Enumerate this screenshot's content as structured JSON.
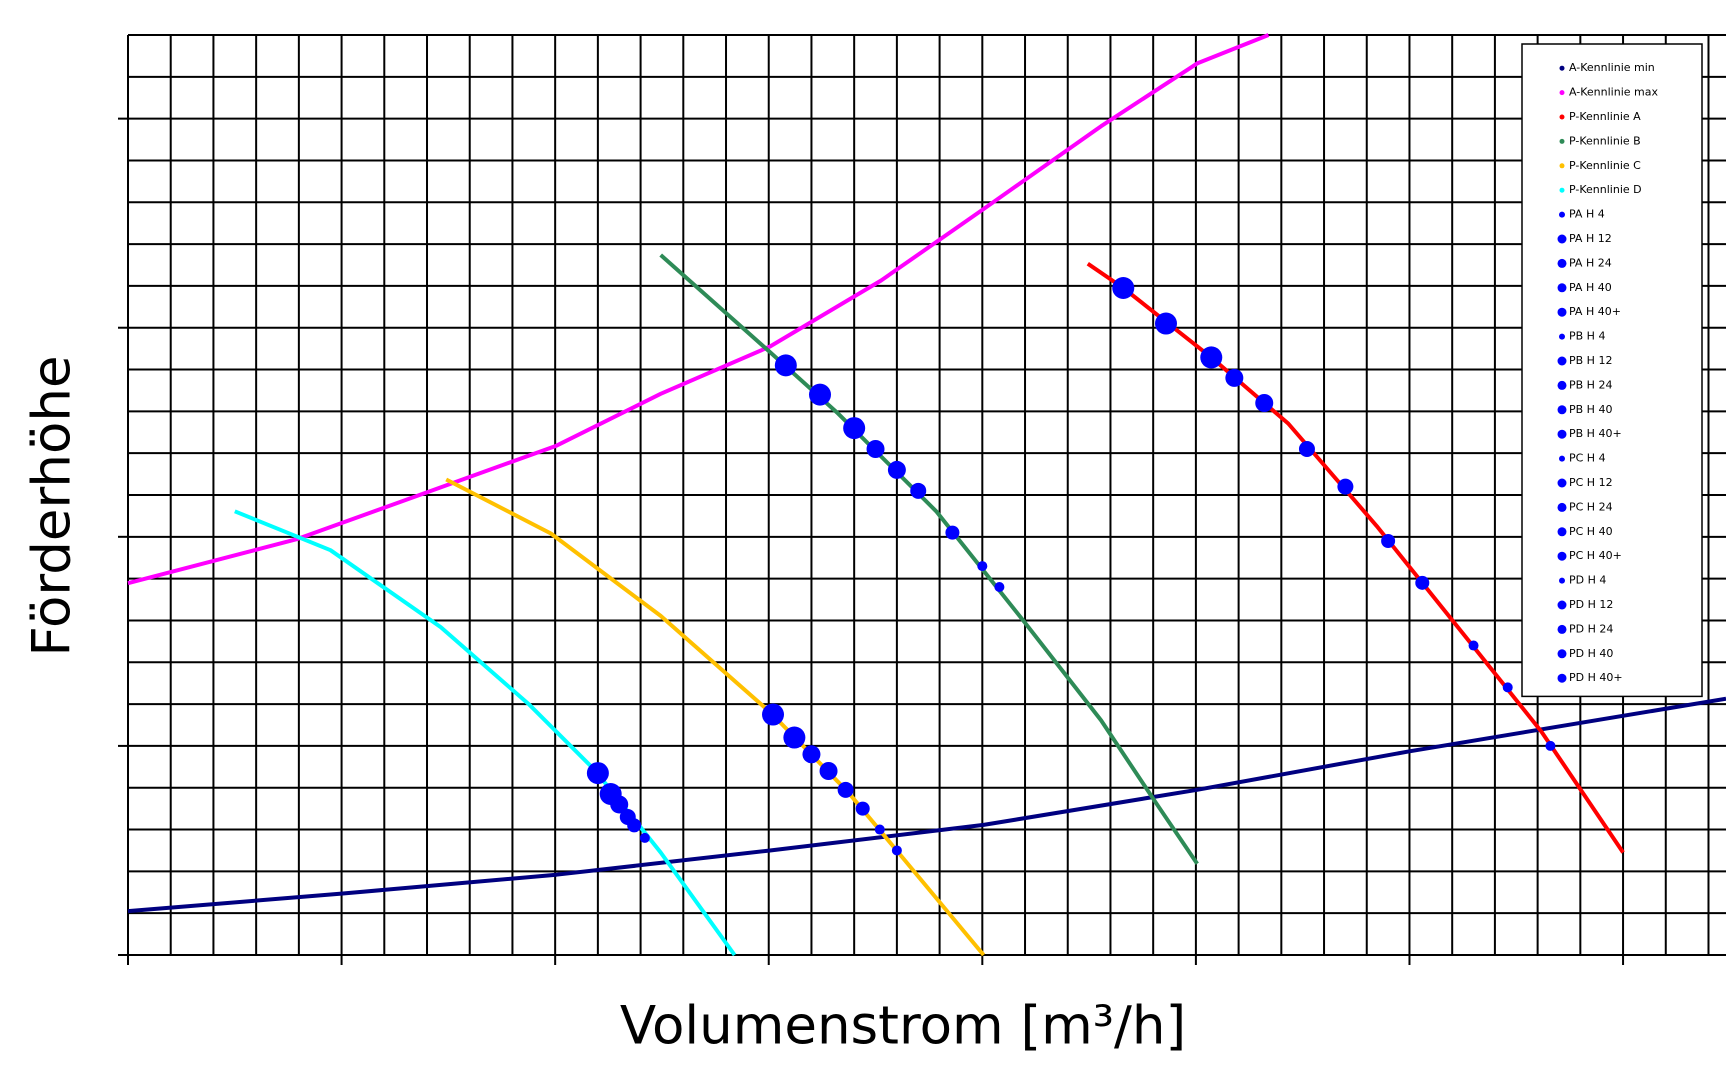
{
  "chart_data": {
    "type": "scatter",
    "x_label": "Volumenstrom [m³/h]",
    "y_label": "Förderhöhe",
    "xlim": [
      0,
      37.41
    ],
    "ylim": [
      0,
      22
    ],
    "xticks": [
      0,
      1,
      2,
      3,
      4,
      5,
      6,
      7,
      8,
      9,
      10,
      11,
      12,
      13,
      14,
      15,
      16,
      17,
      18,
      19,
      20,
      21,
      22,
      23,
      24,
      25,
      26,
      27,
      28,
      29,
      30,
      31,
      32,
      33,
      34,
      35,
      36,
      37
    ],
    "yticks": [
      0,
      1,
      2,
      3,
      4,
      5,
      6,
      7,
      8,
      9,
      10,
      11,
      12,
      13,
      14,
      15,
      16,
      17,
      18,
      19,
      20,
      21,
      22
    ],
    "grid": true,
    "legend": "top-right",
    "series": [
      {
        "name": "A-Kennlinie min",
        "color": "#000080",
        "mode": "line",
        "x": [
          0,
          5.03,
          10.03,
          15.03,
          20.03,
          25.03,
          30,
          37.41
        ],
        "values": [
          1.05,
          1.47,
          1.92,
          2.5,
          3.11,
          3.95,
          4.87,
          6.13
        ]
      },
      {
        "name": "A-Kennlinie max",
        "color": "#ff00ff",
        "mode": "line",
        "x": [
          0,
          3.97,
          7.53,
          10.03,
          12.47,
          15.03,
          17.63,
          20.03,
          22.78,
          25.03,
          26.7
        ],
        "values": [
          8.89,
          9.95,
          11.26,
          12.18,
          13.42,
          14.55,
          16.13,
          17.84,
          19.82,
          21.32,
          22
        ]
      },
      {
        "name": "P-Kennlinie A",
        "color": "#ff0000",
        "mode": "line",
        "x": [
          22.47,
          23.3,
          25.36,
          27.16,
          29.23,
          31.03,
          33.09,
          35.0
        ],
        "values": [
          16.53,
          15.95,
          14.29,
          12.71,
          10.26,
          7.97,
          5.34,
          2.45
        ]
      },
      {
        "name": "P-Kennlinie B",
        "color": "#2e8b57",
        "mode": "line",
        "x": [
          12.47,
          14.97,
          16.6,
          18.92,
          20.98,
          22.78,
          24.07,
          25.03
        ],
        "values": [
          16.74,
          14.47,
          12.97,
          10.61,
          7.97,
          5.61,
          3.63,
          2.18
        ]
      },
      {
        "name": "P-Kennlinie C",
        "color": "#ffc000",
        "mode": "line",
        "x": [
          7.45,
          9.9,
          12.47,
          15.05,
          16.86,
          18.14,
          20.03
        ],
        "values": [
          11.37,
          10.08,
          8.11,
          5.79,
          3.89,
          2.32,
          0
        ]
      },
      {
        "name": "P-Kennlinie D",
        "color": "#00ffff",
        "mode": "line",
        "x": [
          2.5,
          4.74,
          7.32,
          9.38,
          10.93,
          12.47,
          14.2
        ],
        "values": [
          10.61,
          9.68,
          7.84,
          6.0,
          4.42,
          2.45,
          0
        ]
      },
      {
        "name": "PA H 4",
        "color": "#0000ff",
        "mode": "markers",
        "x": [
          31.5,
          32.3,
          33.3
        ],
        "values": [
          7.4,
          6.4,
          5.0
        ]
      },
      {
        "name": "PA H 12",
        "color": "#0000ff",
        "mode": "markers",
        "x": [
          29.5,
          30.3
        ],
        "values": [
          9.9,
          8.9
        ]
      },
      {
        "name": "PA H 24",
        "color": "#0000ff",
        "mode": "markers",
        "x": [
          27.6,
          28.5
        ],
        "values": [
          12.1,
          11.2
        ]
      },
      {
        "name": "PA H 40",
        "color": "#0000ff",
        "mode": "markers",
        "x": [
          25.9,
          26.6
        ],
        "values": [
          13.8,
          13.2
        ]
      },
      {
        "name": "PA H 40+",
        "color": "#0000ff",
        "mode": "markers",
        "x": [
          23.3,
          24.3,
          25.36
        ],
        "values": [
          15.95,
          15.1,
          14.29
        ]
      },
      {
        "name": "PB H 4",
        "color": "#0000ff",
        "mode": "markers",
        "x": [
          20.0,
          20.4
        ],
        "values": [
          9.3,
          8.8
        ]
      },
      {
        "name": "PB H 12",
        "color": "#0000ff",
        "mode": "markers",
        "x": [
          19.3
        ],
        "values": [
          10.1
        ]
      },
      {
        "name": "PB H 24",
        "color": "#0000ff",
        "mode": "markers",
        "x": [
          18.5
        ],
        "values": [
          11.1
        ]
      },
      {
        "name": "PB H 40",
        "color": "#0000ff",
        "mode": "markers",
        "x": [
          17.5,
          18.0
        ],
        "values": [
          12.1,
          11.6
        ]
      },
      {
        "name": "PB H 40+",
        "color": "#0000ff",
        "mode": "markers",
        "x": [
          15.4,
          16.2,
          17.0
        ],
        "values": [
          14.1,
          13.4,
          12.6
        ]
      },
      {
        "name": "PC H 4",
        "color": "#0000ff",
        "mode": "markers",
        "x": [
          17.6,
          18.0
        ],
        "values": [
          3.0,
          2.5
        ]
      },
      {
        "name": "PC H 12",
        "color": "#0000ff",
        "mode": "markers",
        "x": [
          17.2
        ],
        "values": [
          3.5
        ]
      },
      {
        "name": "PC H 24",
        "color": "#0000ff",
        "mode": "markers",
        "x": [
          16.8
        ],
        "values": [
          3.95
        ]
      },
      {
        "name": "PC H 40",
        "color": "#0000ff",
        "mode": "markers",
        "x": [
          16.0,
          16.4
        ],
        "values": [
          4.8,
          4.4
        ]
      },
      {
        "name": "PC H 40+",
        "color": "#0000ff",
        "mode": "markers",
        "x": [
          15.1,
          15.6
        ],
        "values": [
          5.75,
          5.2
        ]
      },
      {
        "name": "PD H 4",
        "color": "#0000ff",
        "mode": "markers",
        "x": [
          12.1
        ],
        "values": [
          2.8
        ]
      },
      {
        "name": "PD H 12",
        "color": "#0000ff",
        "mode": "markers",
        "x": [
          11.85
        ],
        "values": [
          3.1
        ]
      },
      {
        "name": "PD H 24",
        "color": "#0000ff",
        "mode": "markers",
        "x": [
          11.7
        ],
        "values": [
          3.3
        ]
      },
      {
        "name": "PD H 40",
        "color": "#0000ff",
        "mode": "markers",
        "x": [
          11.5
        ],
        "values": [
          3.6
        ]
      },
      {
        "name": "PD H 40+",
        "color": "#0000ff",
        "mode": "markers",
        "x": [
          11.0,
          11.3
        ],
        "values": [
          4.35,
          3.85
        ]
      }
    ]
  }
}
